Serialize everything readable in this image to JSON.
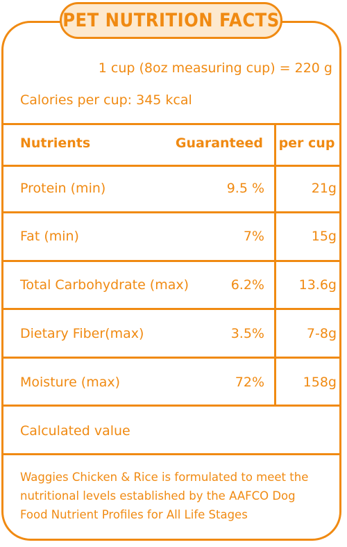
{
  "title": "PET NUTRITION FACTS",
  "serving": "1 cup (8oz measuring cup) = 220 g",
  "calories": "Calories per cup: 345 kcal",
  "table": {
    "headers": {
      "nutrients": "Nutrients",
      "guaranteed": "Guaranteed",
      "per_cup": "per cup"
    },
    "rows": [
      {
        "name": "Protein (min)",
        "guaranteed": "9.5 %",
        "per_cup": "21g"
      },
      {
        "name": "Fat (min)",
        "guaranteed": "7%",
        "per_cup": "15g"
      },
      {
        "name": "Total Carbohydrate (max)",
        "guaranteed": "6.2%",
        "per_cup": "13.6g"
      },
      {
        "name": "Dietary Fiber(max)",
        "guaranteed": "3.5%",
        "per_cup": "7-8g"
      },
      {
        "name": "Moisture (max)",
        "guaranteed": "72%",
        "per_cup": "158g"
      }
    ]
  },
  "calculated": "Calculated value",
  "footer": "Waggies Chicken & Rice is formulated to meet the nutritional levels established by the AAFCO Dog Food Nutrient Profiles for All Life Stages",
  "colors": {
    "accent": "#F08A12",
    "pill_bg": "#FDE9CE",
    "background": "#FFFFFF"
  }
}
